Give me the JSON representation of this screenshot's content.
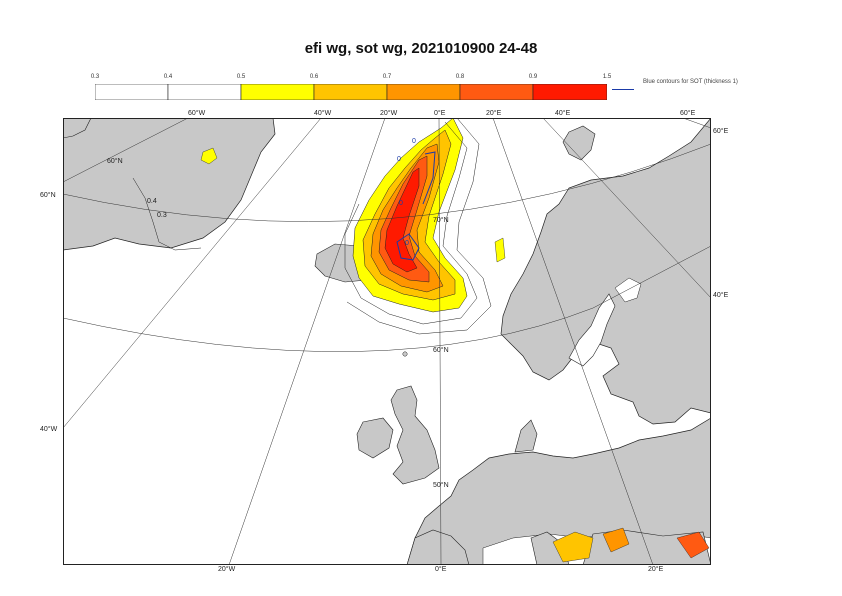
{
  "title": "efi wg, sot wg, 2021010900 24-48",
  "colorbar": {
    "ticks": [
      "0.3",
      "0.4",
      "0.5",
      "0.6",
      "0.7",
      "0.8",
      "0.9",
      "1.5"
    ],
    "colors": [
      "#ffffff",
      "#ffffff",
      "#ffff00",
      "#ffc400",
      "#ff9500",
      "#ff5a12",
      "#ff1a00"
    ],
    "legend_note": "Blue contours for SOT (thickness 1)"
  },
  "map": {
    "colors": {
      "land": "#c8c8c8",
      "ocean": "#ffffff",
      "coast": "#222222",
      "grid": "#333333",
      "sot": "#1a3aa8"
    },
    "labels_top": [
      "60°W",
      "40°W",
      "20°W",
      "0°E",
      "20°E",
      "40°E",
      "60°E"
    ],
    "labels_bottom": [
      "20°W",
      "0°E",
      "20°E"
    ],
    "labels_left": [
      "60°N",
      "40°W"
    ],
    "labels_right": [
      "60°E",
      "40°E"
    ],
    "labels_inner": [
      "60°N",
      "70°N",
      "60°N",
      "50°N",
      "0.4",
      "0.3"
    ],
    "sot_labels": [
      "0",
      "0",
      "0",
      "0"
    ]
  }
}
